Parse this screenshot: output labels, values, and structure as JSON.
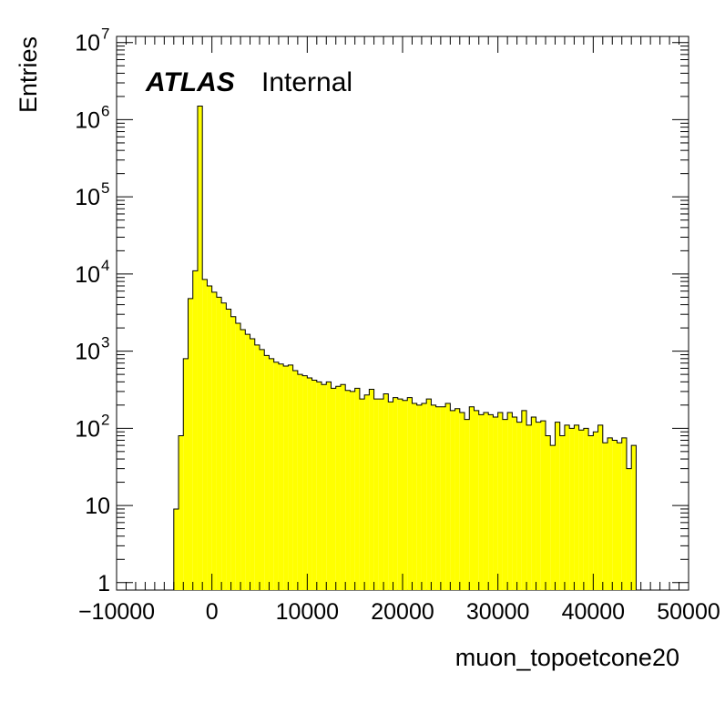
{
  "chart_data": {
    "type": "bar",
    "histogram": true,
    "xlabel": "muon_topoetcone20",
    "ylabel": "Entries",
    "annotation": {
      "label": "ATLAS",
      "text": "Internal"
    },
    "xlim": [
      -10000,
      50000
    ],
    "ylim": [
      0.8,
      12000000
    ],
    "yscale": "log",
    "grid": false,
    "legend": "none",
    "fill_color": "#ffff00",
    "line_color": "#000000",
    "x_ticks": [
      {
        "value": -10000,
        "label": "−10000"
      },
      {
        "value": 0,
        "label": "0"
      },
      {
        "value": 10000,
        "label": "10000"
      },
      {
        "value": 20000,
        "label": "20000"
      },
      {
        "value": 30000,
        "label": "30000"
      },
      {
        "value": 40000,
        "label": "40000"
      },
      {
        "value": 50000,
        "label": "50000"
      }
    ],
    "y_ticks": [
      {
        "value": 1,
        "base": "1",
        "exp": ""
      },
      {
        "value": 10,
        "base": "10",
        "exp": ""
      },
      {
        "value": 100,
        "base": "10",
        "exp": "2"
      },
      {
        "value": 1000,
        "base": "10",
        "exp": "3"
      },
      {
        "value": 10000,
        "base": "10",
        "exp": "4"
      },
      {
        "value": 100000,
        "base": "10",
        "exp": "5"
      },
      {
        "value": 1000000,
        "base": "10",
        "exp": "6"
      },
      {
        "value": 10000000,
        "base": "10",
        "exp": "7"
      }
    ],
    "bin_start": -4000,
    "bin_width": 500,
    "values": [
      9,
      80,
      800,
      4800,
      11000,
      1500000,
      8500,
      7000,
      5800,
      5000,
      4200,
      3500,
      2800,
      2300,
      1900,
      1650,
      1450,
      1200,
      1050,
      880,
      800,
      720,
      680,
      640,
      660,
      560,
      500,
      480,
      450,
      420,
      400,
      370,
      400,
      330,
      350,
      370,
      310,
      300,
      330,
      240,
      270,
      320,
      240,
      240,
      280,
      220,
      250,
      240,
      230,
      250,
      210,
      200,
      210,
      240,
      200,
      190,
      190,
      210,
      170,
      180,
      160,
      130,
      190,
      170,
      150,
      160,
      150,
      140,
      160,
      130,
      160,
      140,
      120,
      170,
      110,
      140,
      120,
      125,
      80,
      60,
      120,
      80,
      110,
      100,
      110,
      95,
      100,
      80,
      90,
      110,
      65,
      75,
      70,
      65,
      75,
      30,
      60
    ]
  }
}
